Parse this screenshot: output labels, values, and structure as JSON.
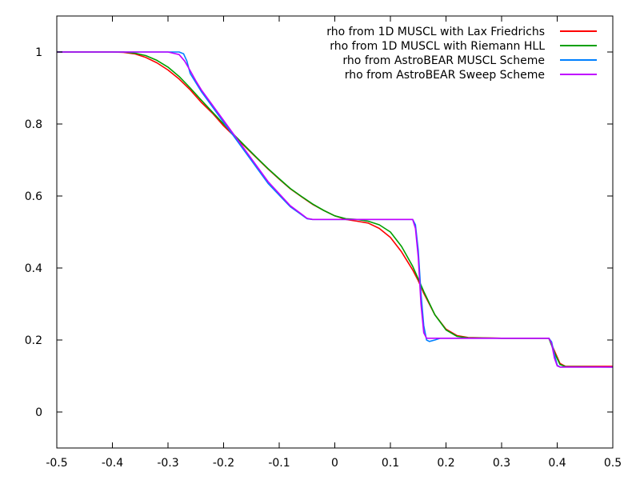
{
  "chart_data": {
    "type": "line",
    "title": "",
    "xlabel": "",
    "ylabel": "",
    "xlim": [
      -0.5,
      0.5
    ],
    "ylim": [
      -0.1,
      1.1
    ],
    "xticks": [
      "-0.5",
      "-0.4",
      "-0.3",
      "-0.2",
      "-0.1",
      "0",
      "0.1",
      "0.2",
      "0.3",
      "0.4",
      "0.5"
    ],
    "yticks": [
      "0",
      "0.2",
      "0.4",
      "0.6",
      "0.8",
      "1"
    ],
    "grid": false,
    "legend_position": "top-right",
    "series": [
      {
        "name": "rho from 1D MUSCL with Lax Friedrichs",
        "color": "#ff0000",
        "x": [
          -0.5,
          -0.4,
          -0.38,
          -0.36,
          -0.34,
          -0.32,
          -0.3,
          -0.28,
          -0.26,
          -0.24,
          -0.22,
          -0.2,
          -0.18,
          -0.16,
          -0.14,
          -0.12,
          -0.1,
          -0.08,
          -0.06,
          -0.04,
          -0.02,
          0.0,
          0.02,
          0.04,
          0.06,
          0.08,
          0.1,
          0.12,
          0.14,
          0.15,
          0.16,
          0.18,
          0.2,
          0.22,
          0.24,
          0.3,
          0.385,
          0.395,
          0.405,
          0.415,
          0.5
        ],
        "y": [
          1.0,
          1.0,
          0.999,
          0.995,
          0.985,
          0.97,
          0.95,
          0.925,
          0.895,
          0.86,
          0.83,
          0.795,
          0.765,
          0.735,
          0.705,
          0.675,
          0.647,
          0.62,
          0.598,
          0.577,
          0.56,
          0.545,
          0.535,
          0.53,
          0.525,
          0.51,
          0.485,
          0.445,
          0.395,
          0.365,
          0.33,
          0.27,
          0.23,
          0.212,
          0.207,
          0.205,
          0.205,
          0.17,
          0.135,
          0.127,
          0.127
        ]
      },
      {
        "name": "rho from 1D MUSCL with Riemann HLL",
        "color": "#00a000",
        "x": [
          -0.5,
          -0.4,
          -0.38,
          -0.36,
          -0.34,
          -0.32,
          -0.3,
          -0.28,
          -0.26,
          -0.24,
          -0.22,
          -0.2,
          -0.18,
          -0.16,
          -0.14,
          -0.12,
          -0.1,
          -0.08,
          -0.06,
          -0.04,
          -0.02,
          0.0,
          0.02,
          0.04,
          0.06,
          0.08,
          0.1,
          0.12,
          0.14,
          0.15,
          0.16,
          0.18,
          0.2,
          0.22,
          0.24,
          0.3,
          0.385,
          0.395,
          0.405,
          0.415,
          0.5
        ],
        "y": [
          1.0,
          1.0,
          1.0,
          0.997,
          0.99,
          0.977,
          0.958,
          0.932,
          0.9,
          0.866,
          0.833,
          0.8,
          0.768,
          0.737,
          0.706,
          0.676,
          0.648,
          0.621,
          0.599,
          0.578,
          0.56,
          0.545,
          0.537,
          0.535,
          0.53,
          0.52,
          0.5,
          0.46,
          0.405,
          0.37,
          0.335,
          0.27,
          0.228,
          0.21,
          0.206,
          0.205,
          0.205,
          0.165,
          0.132,
          0.126,
          0.125
        ]
      },
      {
        "name": "rho from AstroBEAR MUSCL Scheme",
        "color": "#0080ff",
        "x": [
          -0.5,
          -0.28,
          -0.272,
          -0.266,
          -0.26,
          -0.25,
          -0.24,
          -0.2,
          -0.16,
          -0.12,
          -0.08,
          -0.06,
          -0.05,
          -0.04,
          0.0,
          0.05,
          0.1,
          0.14,
          0.145,
          0.15,
          0.155,
          0.16,
          0.165,
          0.17,
          0.18,
          0.19,
          0.22,
          0.3,
          0.385,
          0.39,
          0.395,
          0.4,
          0.405,
          0.5
        ],
        "y": [
          1.0,
          1.0,
          0.995,
          0.975,
          0.94,
          0.915,
          0.89,
          0.805,
          0.72,
          0.635,
          0.57,
          0.548,
          0.537,
          0.535,
          0.535,
          0.535,
          0.535,
          0.535,
          0.52,
          0.45,
          0.33,
          0.24,
          0.2,
          0.196,
          0.2,
          0.205,
          0.205,
          0.205,
          0.205,
          0.195,
          0.16,
          0.13,
          0.125,
          0.125
        ]
      },
      {
        "name": "rho from AstroBEAR Sweep Scheme",
        "color": "#c000ff",
        "x": [
          -0.5,
          -0.3,
          -0.28,
          -0.27,
          -0.26,
          -0.25,
          -0.24,
          -0.2,
          -0.16,
          -0.12,
          -0.08,
          -0.06,
          -0.05,
          -0.04,
          0.0,
          0.05,
          0.1,
          0.14,
          0.145,
          0.15,
          0.155,
          0.16,
          0.165,
          0.17,
          0.18,
          0.19,
          0.22,
          0.3,
          0.385,
          0.39,
          0.395,
          0.4,
          0.405,
          0.5
        ],
        "y": [
          1.0,
          1.0,
          0.993,
          0.975,
          0.948,
          0.92,
          0.895,
          0.81,
          0.725,
          0.64,
          0.573,
          0.55,
          0.538,
          0.535,
          0.535,
          0.535,
          0.535,
          0.535,
          0.51,
          0.43,
          0.3,
          0.22,
          0.205,
          0.205,
          0.205,
          0.205,
          0.205,
          0.205,
          0.205,
          0.19,
          0.15,
          0.128,
          0.125,
          0.125
        ]
      }
    ]
  }
}
